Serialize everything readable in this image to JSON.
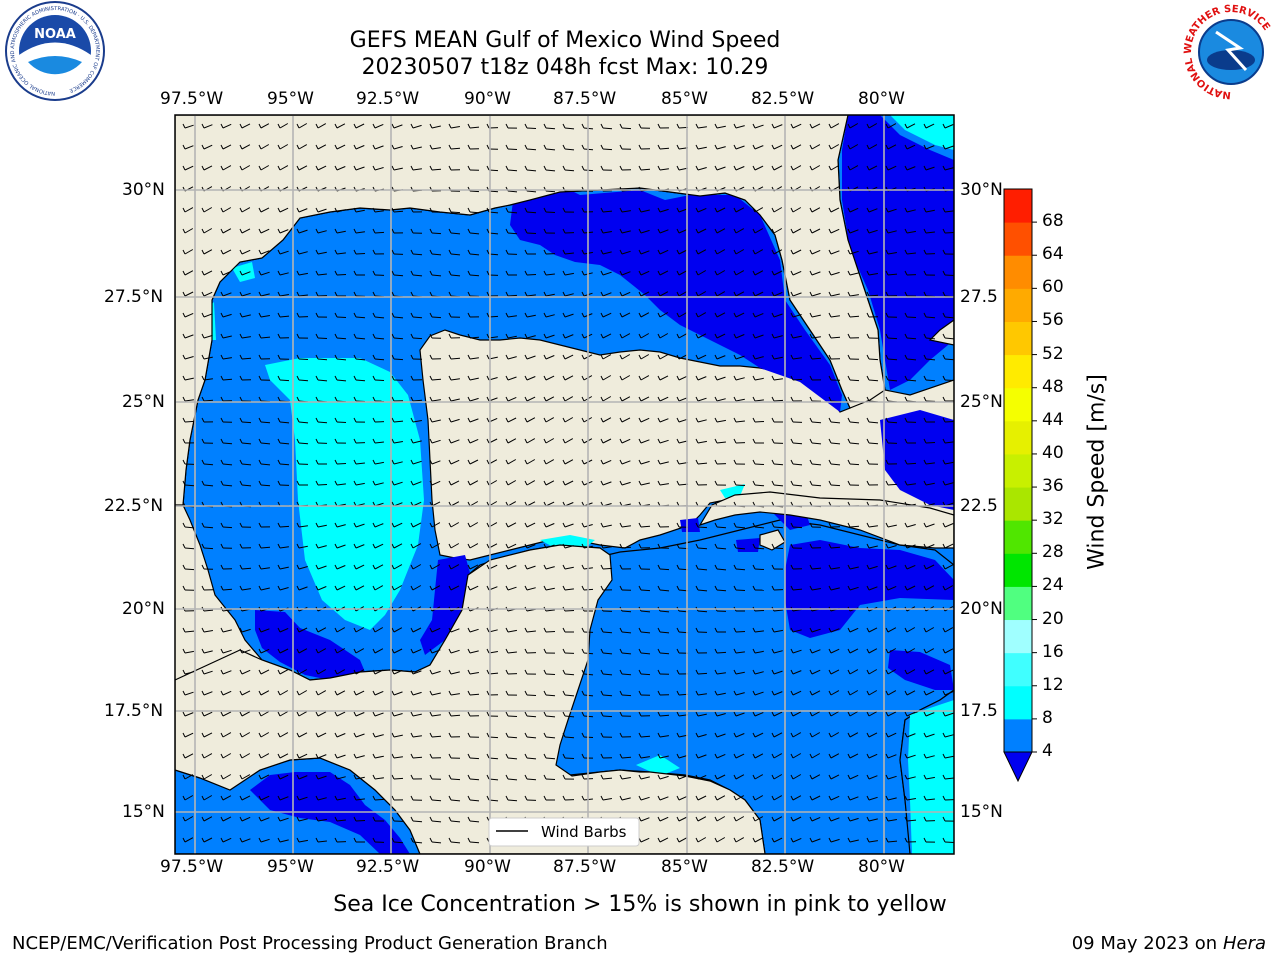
{
  "title": {
    "line1": "GEFS MEAN Gulf of Mexico Wind Speed",
    "line2": "20230507 t18z 048h fcst   Max: 10.29"
  },
  "map": {
    "lon_labels": [
      "97.5°W",
      "95°W",
      "92.5°W",
      "90°W",
      "87.5°W",
      "85°W",
      "82.5°W",
      "80°W"
    ],
    "lat_labels_left": [
      "30°N",
      "27.5°N",
      "25°N",
      "22.5°N",
      "20°N",
      "17.5°N",
      "15°N"
    ],
    "lat_labels_right": [
      "30°N",
      "27.5",
      "25°N",
      "22.5",
      "20°N",
      "17.5",
      "15°N"
    ],
    "legend_label": "Wind Barbs",
    "colors": {
      "land": "#efecdc",
      "water_4_8": "#0080ff",
      "water_lt_4": "#0000f0",
      "water_8_12": "#00ffff",
      "grid": "#b4b4b4"
    }
  },
  "colorbar": {
    "label": "Wind Speed [m/s]",
    "ticks": [
      "4",
      "8",
      "12",
      "16",
      "20",
      "24",
      "28",
      "32",
      "36",
      "40",
      "44",
      "48",
      "52",
      "56",
      "60",
      "64",
      "68"
    ],
    "colors": [
      "#0080ff",
      "#00ffff",
      "#40ffff",
      "#a0ffff",
      "#50ff80",
      "#00e600",
      "#50e600",
      "#aae600",
      "#c8f000",
      "#e6f000",
      "#f5ff00",
      "#ffeb00",
      "#ffc800",
      "#ffaa00",
      "#ff8c00",
      "#ff5000",
      "#ff1e00"
    ],
    "extend_color": "#0000f0"
  },
  "footer": {
    "note": "Sea Ice Concentration > 15% is shown in pink to yellow",
    "credit": "NCEP/EMC/Verification Post Processing Product Generation Branch",
    "date": "09 May 2023 on",
    "host": "Hera"
  },
  "logos": {
    "noaa_text": "NOAA",
    "noaa_ring": "NATIONAL OCEANIC AND ATMOSPHERIC ADMINISTRATION · U.S. DEPARTMENT OF COMMERCE",
    "nws_ring": "NATIONAL WEATHER SERVICE"
  }
}
